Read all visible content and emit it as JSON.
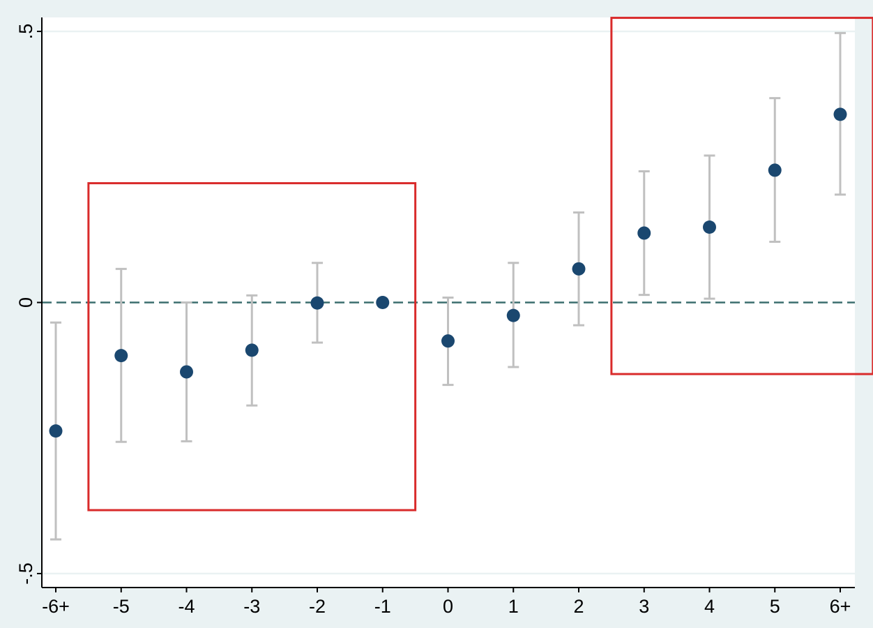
{
  "chart_data": {
    "type": "scatter",
    "title": "",
    "xlabel": "",
    "ylabel": "",
    "categories": [
      "-6+",
      "-5",
      "-4",
      "-3",
      "-2",
      "-1",
      "0",
      "1",
      "2",
      "3",
      "4",
      "5",
      "6+"
    ],
    "values": [
      -0.237,
      -0.098,
      -0.128,
      -0.088,
      -0.001,
      0.0,
      -0.071,
      -0.024,
      0.062,
      0.128,
      0.139,
      0.244,
      0.347
    ],
    "ci_lower": [
      -0.437,
      -0.257,
      -0.256,
      -0.19,
      -0.074,
      0.0,
      -0.152,
      -0.119,
      -0.042,
      0.014,
      0.007,
      0.112,
      0.199
    ],
    "ci_upper": [
      -0.037,
      0.062,
      0.0,
      0.013,
      0.073,
      0.0,
      0.009,
      0.073,
      0.166,
      0.242,
      0.271,
      0.377,
      0.497
    ],
    "ylim": [
      -0.5,
      0.5
    ],
    "yticks": [
      -0.5,
      0,
      0.5
    ],
    "ytick_labels": [
      "-.5",
      "0",
      ".5"
    ],
    "reference_line": 0,
    "highlight_boxes": [
      {
        "x_from": "-5",
        "x_to": "-1",
        "y_from": -0.383,
        "y_to": 0.22
      },
      {
        "x_from": "3",
        "x_to": "6+",
        "y_from": -0.132,
        "y_to": 0.525
      }
    ],
    "grid": true,
    "colors": {
      "marker": "#1a476f",
      "ci": "#c0c0c0",
      "reference": "#3b6e6e",
      "highlight": "#d92b2b",
      "background": "#eaf2f3",
      "plot_bg": "#ffffff"
    }
  }
}
